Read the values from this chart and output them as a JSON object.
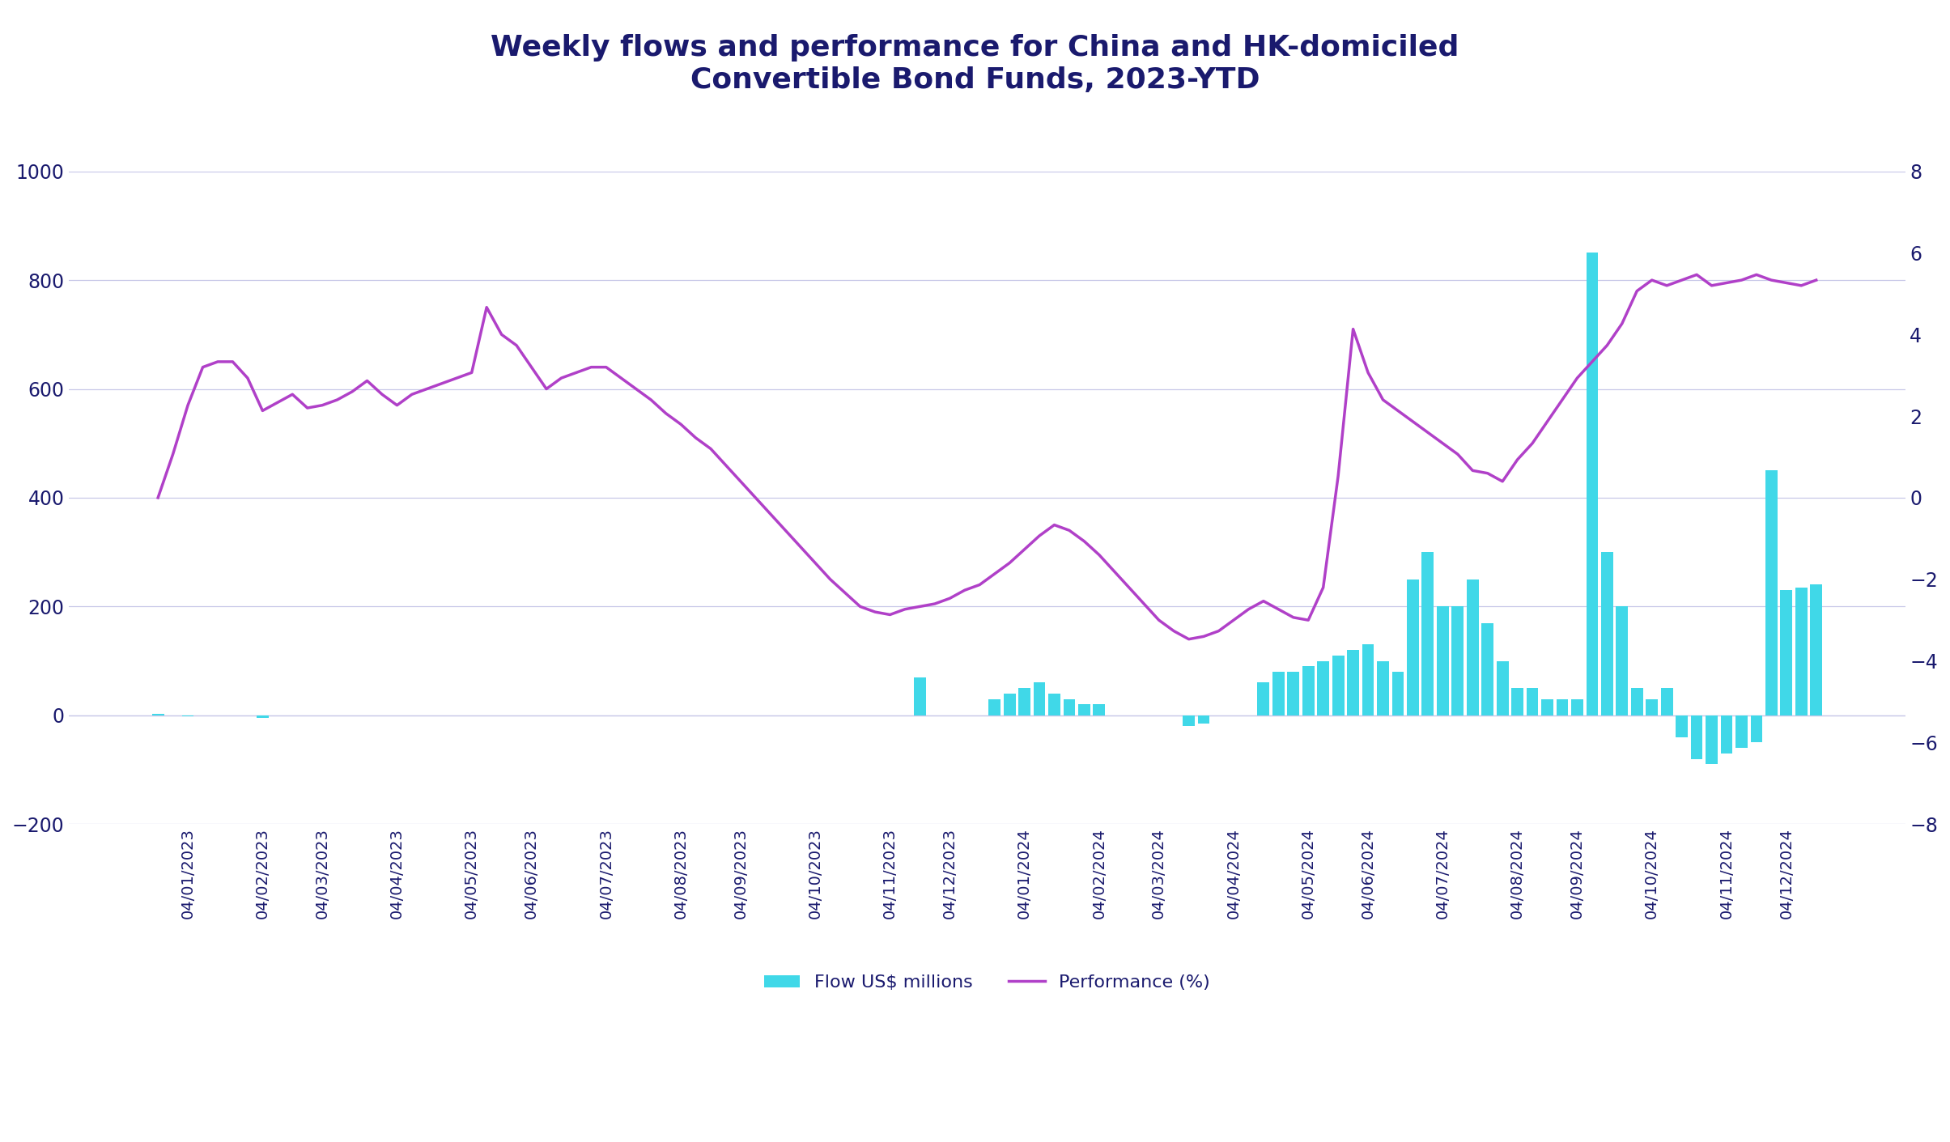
{
  "title": "Weekly flows and performance for China and HK-domiciled\nConvertible Bond Funds, 2023-YTD",
  "title_color": "#1a1a6e",
  "background_color": "#ffffff",
  "left_ylim": [
    -200,
    1000
  ],
  "right_ylim": [
    -8,
    8
  ],
  "left_yticks": [
    -200,
    0,
    200,
    400,
    600,
    800,
    1000
  ],
  "right_yticks": [
    -8,
    -6,
    -4,
    -2,
    0,
    2,
    4,
    6,
    8
  ],
  "bar_color": "#40d8e8",
  "line_color": "#b040c8",
  "grid_color": "#c8c8e8",
  "tick_label_color": "#1a1a6e",
  "dates": [
    "04/01/2023",
    "04/02/2023",
    "04/03/2023",
    "04/04/2023",
    "04/05/2023",
    "04/06/2023",
    "04/07/2023",
    "04/08/2023",
    "04/09/2023",
    "04/10/2023",
    "04/11/2023",
    "04/12/2023",
    "04/01/2024",
    "04/02/2024",
    "04/03/2024",
    "04/04/2024",
    "04/05/2024",
    "04/06/2024",
    "04/07/2024",
    "04/08/2024",
    "04/09/2024",
    "04/10/2024",
    "04/11/2024",
    "04/12/2024"
  ],
  "legend_bar_label": "Flow US$ millions",
  "legend_line_label": "Performance (%)",
  "perf_left": [
    400,
    480,
    570,
    640,
    650,
    650,
    620,
    560,
    575,
    590,
    565,
    570,
    580,
    595,
    615,
    590,
    570,
    590,
    600,
    610,
    620,
    630,
    750,
    700,
    680,
    640,
    600,
    620,
    630,
    640,
    640,
    620,
    600,
    580,
    555,
    535,
    510,
    490,
    460,
    430,
    400,
    370,
    340,
    310,
    280,
    250,
    225,
    200,
    190,
    185,
    195,
    200,
    205,
    215,
    230,
    240,
    260,
    280,
    305,
    330,
    350,
    340,
    320,
    295,
    265,
    235,
    205,
    175,
    155,
    140,
    145,
    155,
    175,
    195,
    210,
    195,
    180,
    175,
    235,
    440,
    710,
    630,
    580,
    560,
    540,
    520,
    500,
    480,
    450,
    445,
    430,
    470,
    500,
    540,
    580,
    620,
    650,
    680,
    720,
    780,
    800,
    790,
    800,
    810,
    790,
    795,
    800,
    810,
    800,
    795,
    790,
    800
  ],
  "flows_raw": [
    2,
    0,
    -2,
    0,
    0,
    0,
    0,
    -5,
    0,
    0,
    0,
    0,
    0,
    0,
    0,
    0,
    0,
    0,
    0,
    0,
    0,
    0,
    0,
    0,
    0,
    0,
    0,
    0,
    0,
    0,
    0,
    0,
    0,
    0,
    0,
    0,
    0,
    0,
    0,
    0,
    0,
    0,
    0,
    0,
    0,
    0,
    0,
    0,
    0,
    0,
    0,
    70,
    0,
    0,
    0,
    0,
    30,
    40,
    50,
    60,
    40,
    30,
    20,
    20,
    0,
    0,
    0,
    0,
    0,
    -20,
    -15,
    0,
    0,
    0,
    60,
    80,
    80,
    90,
    100,
    110,
    120,
    130,
    100,
    80,
    250,
    300,
    200,
    200,
    250,
    170,
    100,
    50,
    50,
    30,
    30,
    30,
    850,
    300,
    200,
    50,
    30,
    50,
    -40,
    -80,
    -90,
    -70,
    -60,
    -50,
    450,
    230,
    235,
    240
  ]
}
